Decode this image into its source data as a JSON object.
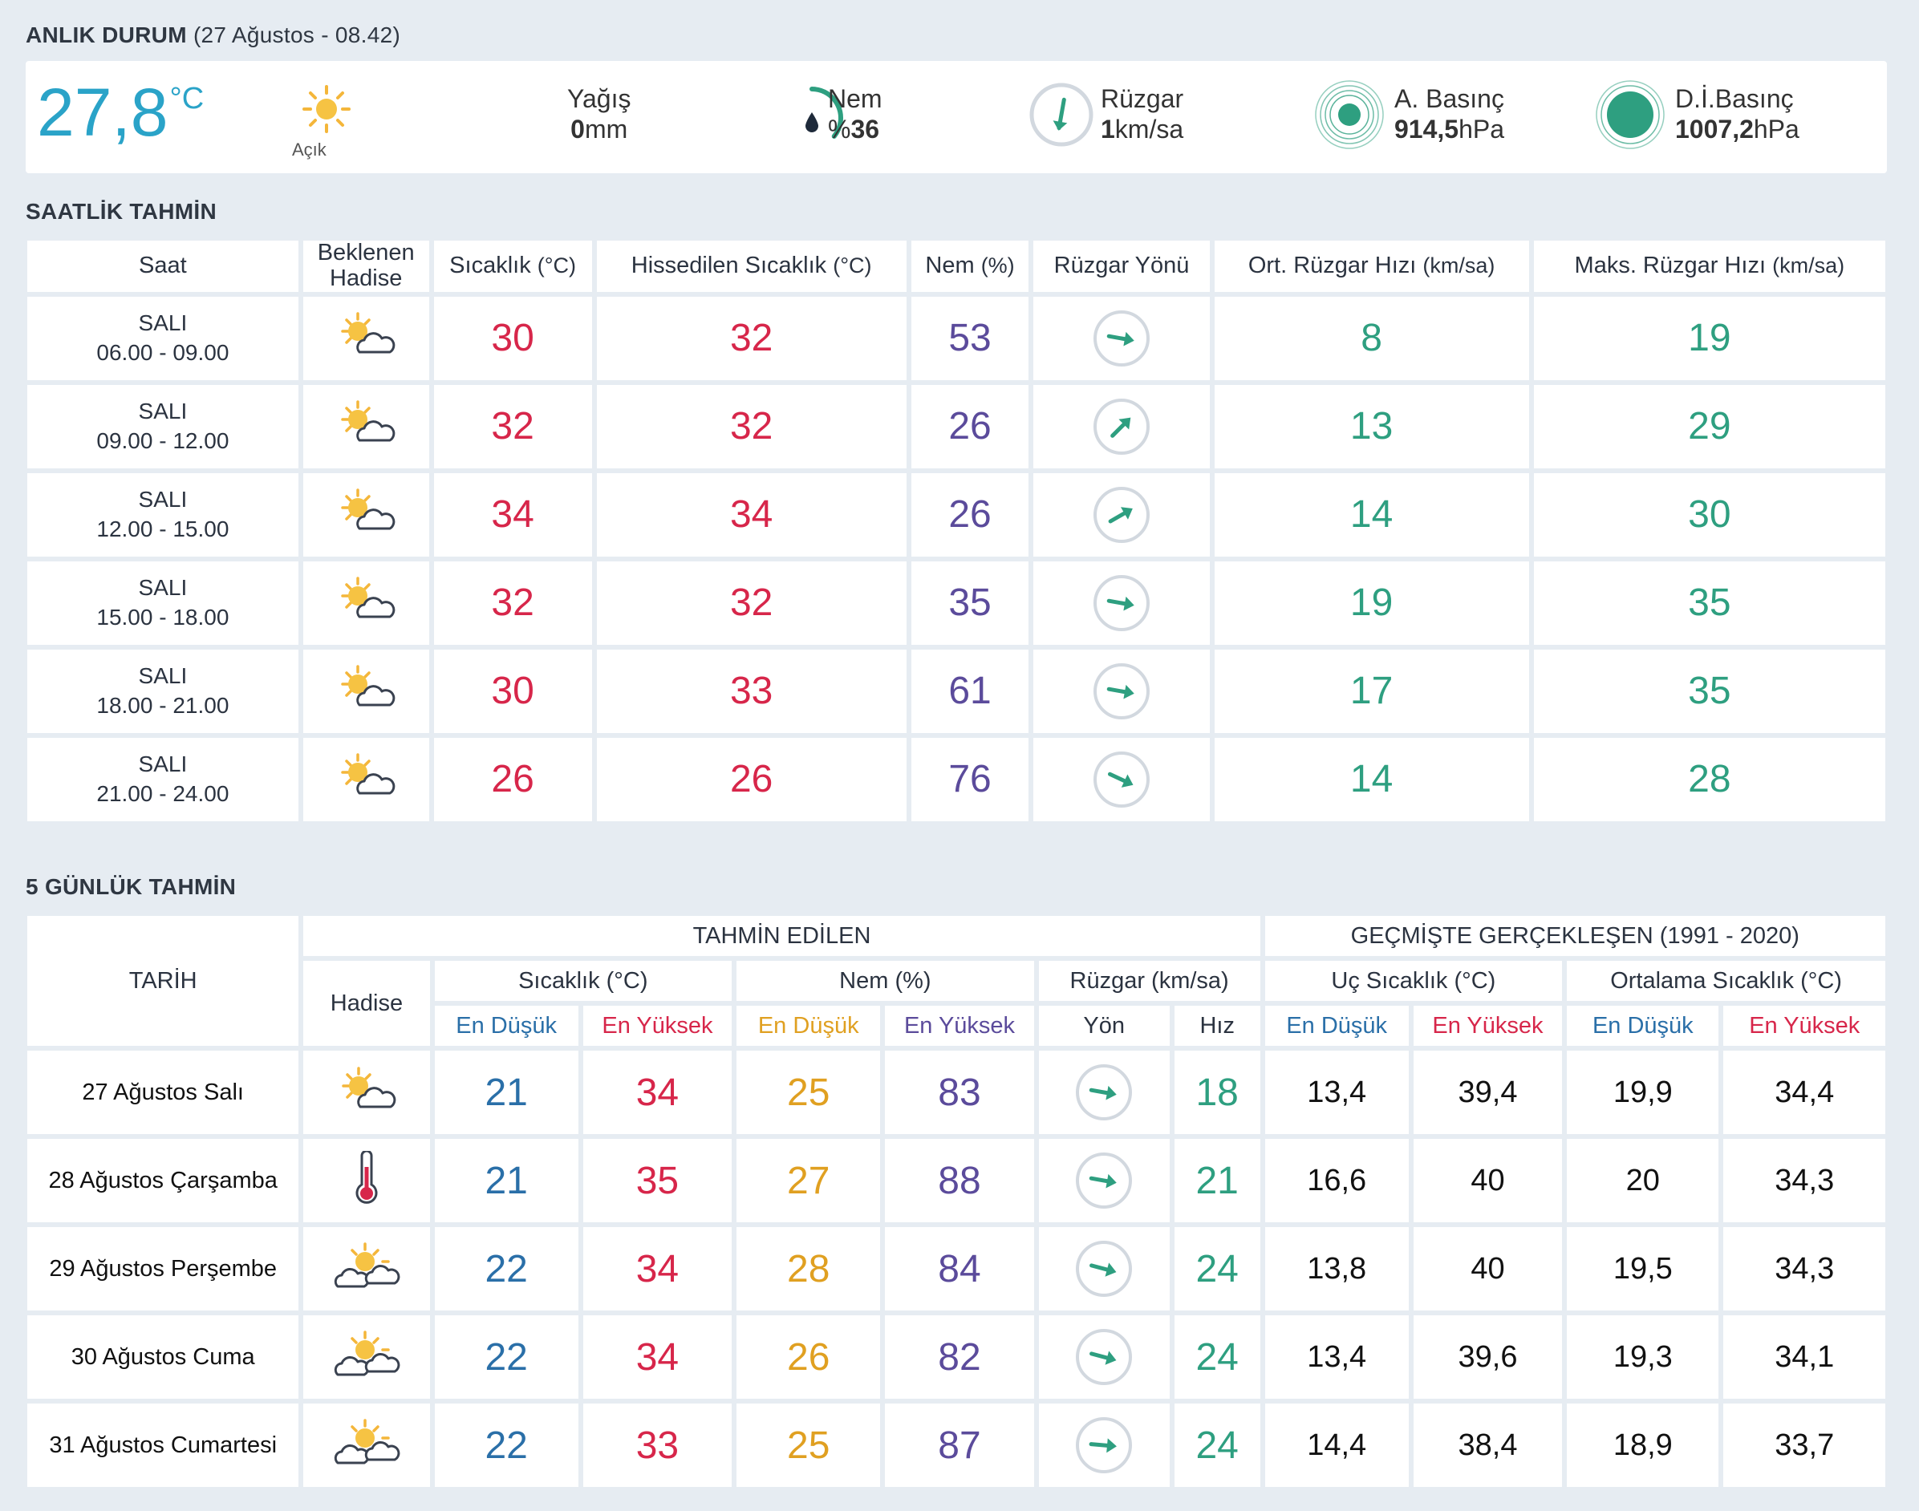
{
  "current": {
    "title": "ANLIK DURUM",
    "subtitle": "(27 Ağustos - 08.42)",
    "temperature": "27,8",
    "temperature_unit": "°C",
    "condition": "Açık",
    "precip_label": "Yağış",
    "precip_value": "0",
    "precip_unit": "mm",
    "humidity_label": "Nem",
    "humidity_prefix": "%",
    "humidity_value": "36",
    "humidity_fraction": 0.36,
    "wind_label": "Rüzgar",
    "wind_value": "1",
    "wind_unit": "km/sa",
    "pressure_label": "A. Basınç",
    "pressure_value": "914,5",
    "pressure_unit": "hPa",
    "sea_pressure_label": "D.İ.Basınç",
    "sea_pressure_value": "1007,2",
    "sea_pressure_unit": "hPa",
    "accent_color": "#2aa3c8",
    "green_color": "#2e9f80"
  },
  "hourly": {
    "title": "SAATLİK TAHMİN",
    "headers": {
      "time": "Saat",
      "event_line1": "Beklenen",
      "event_line2": "Hadise",
      "temp": "Sıcaklık",
      "temp_unit": "(°C)",
      "feels": "Hissedilen Sıcaklık",
      "feels_unit": "(°C)",
      "humidity": "Nem",
      "humidity_unit": "(%)",
      "wind_dir": "Rüzgar Yönü",
      "avg_wind": "Ort. Rüzgar Hızı",
      "avg_wind_unit": "(km/sa)",
      "max_wind": "Maks. Rüzgar Hızı",
      "max_wind_unit": "(km/sa)"
    },
    "rows": [
      {
        "day": "SALI",
        "time": "06.00 - 09.00",
        "icon": "partly-cloudy-icon",
        "temp": "30",
        "feels": "32",
        "humidity": "53",
        "wind_angle": 10,
        "avg": "8",
        "max": "19"
      },
      {
        "day": "SALI",
        "time": "09.00 - 12.00",
        "icon": "partly-cloudy-icon",
        "temp": "32",
        "feels": "32",
        "humidity": "26",
        "wind_angle": -45,
        "avg": "13",
        "max": "29"
      },
      {
        "day": "SALI",
        "time": "12.00 - 15.00",
        "icon": "partly-cloudy-icon",
        "temp": "34",
        "feels": "34",
        "humidity": "26",
        "wind_angle": -30,
        "avg": "14",
        "max": "30"
      },
      {
        "day": "SALI",
        "time": "15.00 - 18.00",
        "icon": "partly-cloudy-icon",
        "temp": "32",
        "feels": "32",
        "humidity": "35",
        "wind_angle": 10,
        "avg": "19",
        "max": "35"
      },
      {
        "day": "SALI",
        "time": "18.00 - 21.00",
        "icon": "partly-cloudy-icon",
        "temp": "30",
        "feels": "33",
        "humidity": "61",
        "wind_angle": 10,
        "avg": "17",
        "max": "35"
      },
      {
        "day": "SALI",
        "time": "21.00 - 24.00",
        "icon": "partly-cloudy-icon",
        "temp": "26",
        "feels": "26",
        "humidity": "76",
        "wind_angle": 25,
        "avg": "14",
        "max": "28"
      }
    ]
  },
  "daily": {
    "title": "5 GÜNLÜK TAHMİN",
    "headers": {
      "date": "TARİH",
      "forecast": "TAHMİN EDİLEN",
      "history": "GEÇMİŞTE GERÇEKLEŞEN (1991 - 2020)",
      "event": "Hadise",
      "temp": "Sıcaklık (°C)",
      "humidity": "Nem (%)",
      "wind": "Rüzgar (km/sa)",
      "extreme": "Uç Sıcaklık (°C)",
      "average": "Ortalama Sıcaklık (°C)",
      "low": "En Düşük",
      "high": "En Yüksek",
      "dir": "Yön",
      "speed": "Hız"
    },
    "rows": [
      {
        "date": "27 Ağustos Salı",
        "icon": "partly-cloudy-icon",
        "tmin": "21",
        "tmax": "34",
        "hmin": "25",
        "hmax": "83",
        "wind_angle": 10,
        "speed": "18",
        "ext_min": "13,4",
        "ext_max": "39,4",
        "avg_min": "19,9",
        "avg_max": "34,4"
      },
      {
        "date": "28 Ağustos Çarşamba",
        "icon": "thermometer-icon",
        "tmin": "21",
        "tmax": "35",
        "hmin": "27",
        "hmax": "88",
        "wind_angle": 10,
        "speed": "21",
        "ext_min": "16,6",
        "ext_max": "40",
        "avg_min": "20",
        "avg_max": "34,3"
      },
      {
        "date": "29 Ağustos Perşembe",
        "icon": "sun-clouds-icon",
        "tmin": "22",
        "tmax": "34",
        "hmin": "28",
        "hmax": "84",
        "wind_angle": 15,
        "speed": "24",
        "ext_min": "13,8",
        "ext_max": "40",
        "avg_min": "19,5",
        "avg_max": "34,3"
      },
      {
        "date": "30 Ağustos Cuma",
        "icon": "sun-clouds-icon",
        "tmin": "22",
        "tmax": "34",
        "hmin": "26",
        "hmax": "82",
        "wind_angle": 15,
        "speed": "24",
        "ext_min": "13,4",
        "ext_max": "39,6",
        "avg_min": "19,3",
        "avg_max": "34,1"
      },
      {
        "date": "31 Ağustos Cumartesi",
        "icon": "sun-clouds-icon",
        "tmin": "22",
        "tmax": "33",
        "hmin": "25",
        "hmax": "87",
        "wind_angle": 5,
        "speed": "24",
        "ext_min": "14,4",
        "ext_max": "38,4",
        "avg_min": "18,9",
        "avg_max": "33,7"
      }
    ]
  }
}
